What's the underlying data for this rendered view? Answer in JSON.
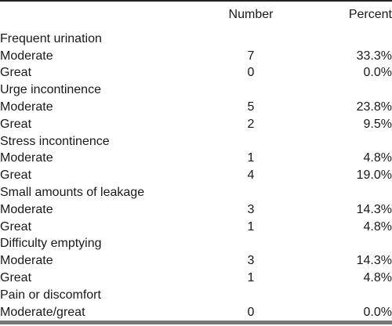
{
  "table": {
    "headers": {
      "label": "",
      "number": "Number",
      "percent": "Percent"
    },
    "groups": [
      {
        "category": "Frequent urination",
        "rows": [
          {
            "label": "Moderate",
            "number": "7",
            "percent": "33.3%"
          },
          {
            "label": "Great",
            "number": "0",
            "percent": "0.0%"
          }
        ]
      },
      {
        "category": "Urge incontinence",
        "rows": [
          {
            "label": "Moderate",
            "number": "5",
            "percent": "23.8%"
          },
          {
            "label": "Great",
            "number": "2",
            "percent": "9.5%"
          }
        ]
      },
      {
        "category": "Stress incontinence",
        "rows": [
          {
            "label": "Moderate",
            "number": "1",
            "percent": "4.8%"
          },
          {
            "label": "Great",
            "number": "4",
            "percent": "19.0%"
          }
        ]
      },
      {
        "category": "Small amounts of leakage",
        "rows": [
          {
            "label": "Moderate",
            "number": "3",
            "percent": "14.3%"
          },
          {
            "label": "Great",
            "number": "1",
            "percent": "4.8%"
          }
        ]
      },
      {
        "category": "Difficulty emptying",
        "rows": [
          {
            "label": "Moderate",
            "number": "3",
            "percent": "14.3%"
          },
          {
            "label": "Great",
            "number": "1",
            "percent": "4.8%"
          }
        ]
      },
      {
        "category": "Pain or discomfort",
        "rows": [
          {
            "label": "Moderate/great",
            "number": "0",
            "percent": "0.0%"
          }
        ]
      }
    ]
  }
}
